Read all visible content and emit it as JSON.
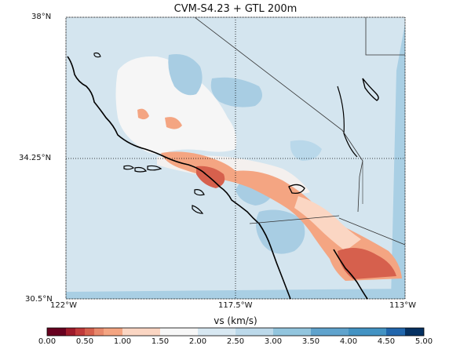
{
  "title": "CVM-S4.23 + GTL 200m",
  "lat_labels": [
    "38°N",
    "34.25°N",
    "30.5°N"
  ],
  "lon_labels": [
    "122°W",
    "117.5°W",
    "113°W"
  ],
  "colorbar": {
    "label": "vs (km/s)",
    "ticks": [
      "0.00",
      "0.50",
      "1.00",
      "1.50",
      "2.00",
      "2.50",
      "3.00",
      "3.50",
      "4.00",
      "4.50",
      "5.00"
    ],
    "colors": [
      "#67001f",
      "#9e1a2a",
      "#c03a3a",
      "#d6604d",
      "#e8896c",
      "#f4a582",
      "#fbd6c3",
      "#f7f7f7",
      "#d8e8f2",
      "#bcd9ea",
      "#92c5de",
      "#5fa3cd",
      "#4393c3",
      "#2166ac",
      "#053061"
    ]
  }
}
